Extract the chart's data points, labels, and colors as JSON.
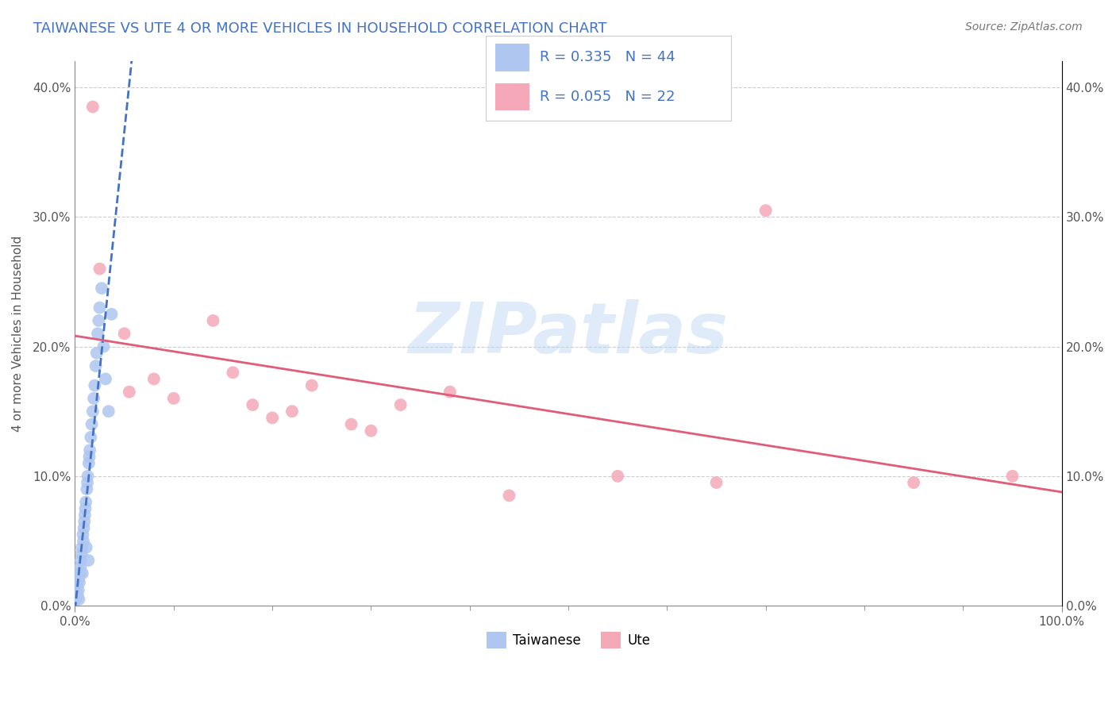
{
  "title": "TAIWANESE VS UTE 4 OR MORE VEHICLES IN HOUSEHOLD CORRELATION CHART",
  "source": "Source: ZipAtlas.com",
  "ylabel": "4 or more Vehicles in Household",
  "ytick_values": [
    0.0,
    10.0,
    20.0,
    30.0,
    40.0
  ],
  "xlim": [
    0.0,
    100.0
  ],
  "ylim": [
    0.0,
    42.0
  ],
  "legend_R": [
    0.335,
    0.055
  ],
  "legend_N": [
    44,
    22
  ],
  "taiwanese_color": "#aec6f0",
  "ute_color": "#f4a8b8",
  "trendline_taiwanese_color": "#4472c4",
  "trendline_ute_color": "#e05c78",
  "watermark": "ZIPatlas",
  "tai_x": [
    0.1,
    0.15,
    0.2,
    0.25,
    0.3,
    0.35,
    0.4,
    0.45,
    0.5,
    0.55,
    0.6,
    0.65,
    0.7,
    0.75,
    0.8,
    0.85,
    0.9,
    0.95,
    1.0,
    1.05,
    1.1,
    1.15,
    1.2,
    1.25,
    1.3,
    1.35,
    1.4,
    1.45,
    1.5,
    1.6,
    1.7,
    1.8,
    1.9,
    2.0,
    2.1,
    2.2,
    2.3,
    2.4,
    2.5,
    2.7,
    2.9,
    3.1,
    3.4,
    3.7
  ],
  "tai_y": [
    0.5,
    1.0,
    1.5,
    0.8,
    2.0,
    1.2,
    0.5,
    1.8,
    2.5,
    3.0,
    3.5,
    4.0,
    4.5,
    2.5,
    5.5,
    5.0,
    6.0,
    6.5,
    7.0,
    7.5,
    8.0,
    4.5,
    9.0,
    9.5,
    10.0,
    3.5,
    11.0,
    11.5,
    12.0,
    13.0,
    14.0,
    15.0,
    16.0,
    17.0,
    18.5,
    19.5,
    21.0,
    22.0,
    23.0,
    24.5,
    20.0,
    17.5,
    15.0,
    22.5
  ],
  "ute_x": [
    1.8,
    2.5,
    5.0,
    5.5,
    8.0,
    10.0,
    14.0,
    18.0,
    20.0,
    22.0,
    24.0,
    28.0,
    33.0,
    38.0,
    44.0,
    55.0,
    65.0,
    70.0,
    85.0,
    95.0,
    16.0,
    30.0
  ],
  "ute_y": [
    38.5,
    26.0,
    21.0,
    16.5,
    17.5,
    16.0,
    22.0,
    15.5,
    14.5,
    15.0,
    17.0,
    14.0,
    15.5,
    16.5,
    8.5,
    10.0,
    9.5,
    30.5,
    9.5,
    10.0,
    18.0,
    13.5
  ]
}
